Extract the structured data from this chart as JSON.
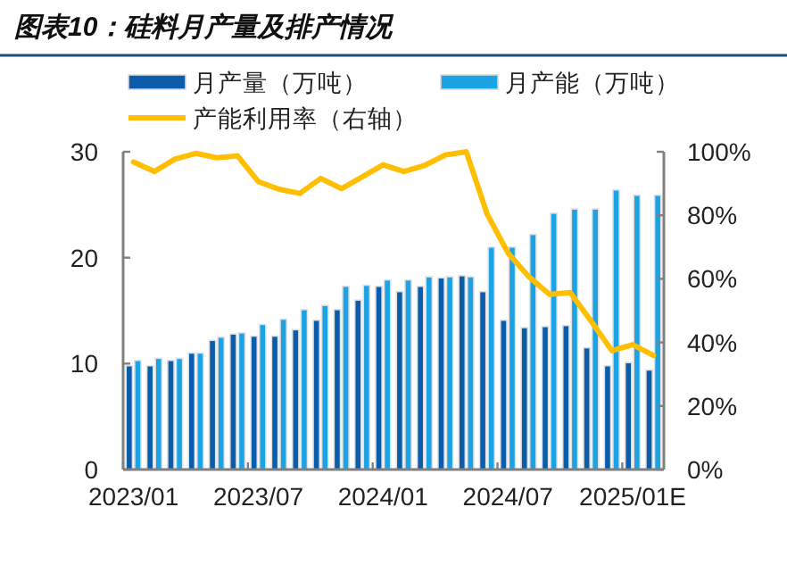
{
  "chart_data": {
    "type": "bar",
    "title": "图表10：硅料月产量及排产情况",
    "categories": [
      "2023/01",
      null,
      null,
      null,
      null,
      null,
      "2023/07",
      null,
      null,
      null,
      null,
      null,
      "2024/01",
      null,
      null,
      null,
      null,
      null,
      "2024/07",
      null,
      null,
      null,
      null,
      null,
      "2025/01E",
      null
    ],
    "series": [
      {
        "name": "月产量（万吨）",
        "color": "#0b5cab",
        "values": [
          9.8,
          9.8,
          10.3,
          11.0,
          12.2,
          12.8,
          12.6,
          12.6,
          13.2,
          14.1,
          15.1,
          16.0,
          17.3,
          16.8,
          17.3,
          18.1,
          18.3,
          16.8,
          14.1,
          13.4,
          13.5,
          13.6,
          11.5,
          9.8,
          10.1,
          9.4
        ]
      },
      {
        "name": "月产能（万吨）",
        "color": "#1ba3e6",
        "values": [
          10.3,
          10.5,
          10.5,
          11.0,
          12.5,
          12.9,
          13.7,
          14.2,
          15.1,
          15.5,
          17.3,
          17.4,
          17.9,
          17.9,
          18.2,
          18.2,
          18.2,
          21.0,
          21.0,
          22.2,
          24.2,
          24.6,
          24.6,
          26.4,
          25.9,
          25.9
        ]
      },
      {
        "name": "产能利用率（右轴）",
        "type": "line",
        "axis": "y2",
        "color": "#ffbf00",
        "values": [
          96.8,
          93.8,
          97.7,
          99.5,
          98.1,
          98.7,
          90.6,
          88.2,
          86.9,
          91.6,
          88.4,
          92.1,
          95.9,
          93.8,
          95.7,
          99.0,
          100,
          80.4,
          68.2,
          60.7,
          55.1,
          55.7,
          46.7,
          37.4,
          39.3,
          35.9
        ]
      }
    ],
    "ylim": [
      0,
      30
    ],
    "yticks": [
      0,
      10,
      20,
      30
    ],
    "y2lim": [
      0,
      100
    ],
    "y2ticks": [
      {
        "value": 0,
        "label": "0%"
      },
      {
        "value": 20,
        "label": "20%"
      },
      {
        "value": 40,
        "label": "40%"
      },
      {
        "value": 60,
        "label": "60%"
      },
      {
        "value": 80,
        "label": "80%"
      },
      {
        "value": 100,
        "label": "100%"
      }
    ],
    "legend": "top"
  }
}
